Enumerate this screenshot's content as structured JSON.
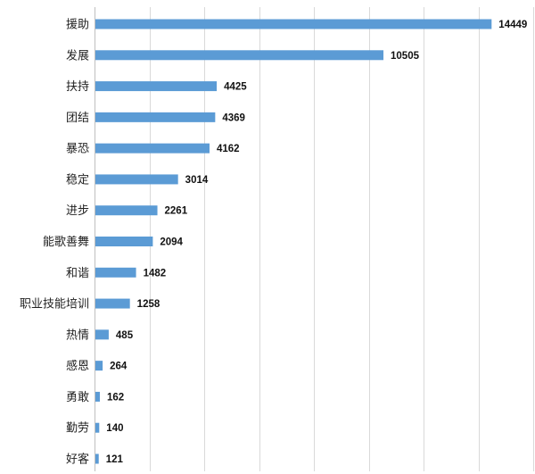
{
  "chart_data": {
    "type": "bar",
    "orientation": "horizontal",
    "categories": [
      "援助",
      "发展",
      "扶持",
      "团结",
      "暴恐",
      "稳定",
      "进步",
      "能歌善舞",
      "和谐",
      "职业技能培训",
      "热情",
      "感恩",
      "勇敢",
      "勤劳",
      "好客"
    ],
    "values": [
      14449,
      10505,
      4425,
      4369,
      4162,
      3014,
      2261,
      2094,
      1482,
      1258,
      485,
      264,
      162,
      140,
      121
    ],
    "xlim": [
      0,
      16000
    ],
    "grid": "vertical",
    "bar_color": "#5b9bd5",
    "data_labels": true
  }
}
